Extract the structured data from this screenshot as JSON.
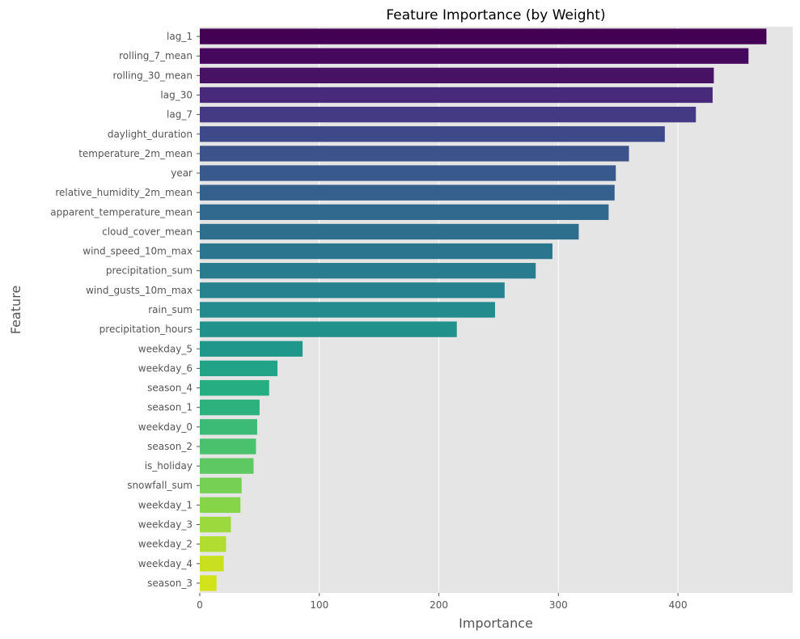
{
  "chart_data": {
    "type": "bar",
    "orientation": "horizontal",
    "title": "Feature Importance (by Weight)",
    "xlabel": "Importance",
    "ylabel": "Feature",
    "xlim": [
      0,
      496
    ],
    "x_ticks": [
      0,
      100,
      200,
      300,
      400
    ],
    "grid": true,
    "colormap": "viridis",
    "background": "#e5e5e5",
    "categories": [
      "lag_1",
      "rolling_7_mean",
      "rolling_30_mean",
      "lag_30",
      "lag_7",
      "daylight_duration",
      "temperature_2m_mean",
      "year",
      "relative_humidity_2m_mean",
      "apparent_temperature_mean",
      "cloud_cover_mean",
      "wind_speed_10m_max",
      "precipitation_sum",
      "wind_gusts_10m_max",
      "rain_sum",
      "precipitation_hours",
      "weekday_5",
      "weekday_6",
      "season_4",
      "season_1",
      "weekday_0",
      "season_2",
      "is_holiday",
      "snowfall_sum",
      "weekday_1",
      "weekday_3",
      "weekday_2",
      "weekday_4",
      "season_3"
    ],
    "values": [
      474,
      459,
      430,
      429,
      415,
      389,
      359,
      348,
      347,
      342,
      317,
      295,
      281,
      255,
      247,
      215,
      86,
      65,
      58,
      50,
      48,
      47,
      45,
      35,
      34,
      26,
      22,
      20,
      14
    ],
    "colors": [
      "#440154",
      "#46085c",
      "#471164",
      "#472a7a",
      "#443a83",
      "#3e4989",
      "#3b528b",
      "#38598c",
      "#35608d",
      "#31688e",
      "#2e6f8e",
      "#2b758e",
      "#297b8e",
      "#26828e",
      "#238a8d",
      "#21918c",
      "#1f988b",
      "#20a386",
      "#26ad81",
      "#2db27d",
      "#3bbb75",
      "#4ac16d",
      "#5ec962",
      "#75d054",
      "#86d549",
      "#9bd93c",
      "#b0dd2f",
      "#c8e020",
      "#d2e21b"
    ]
  }
}
